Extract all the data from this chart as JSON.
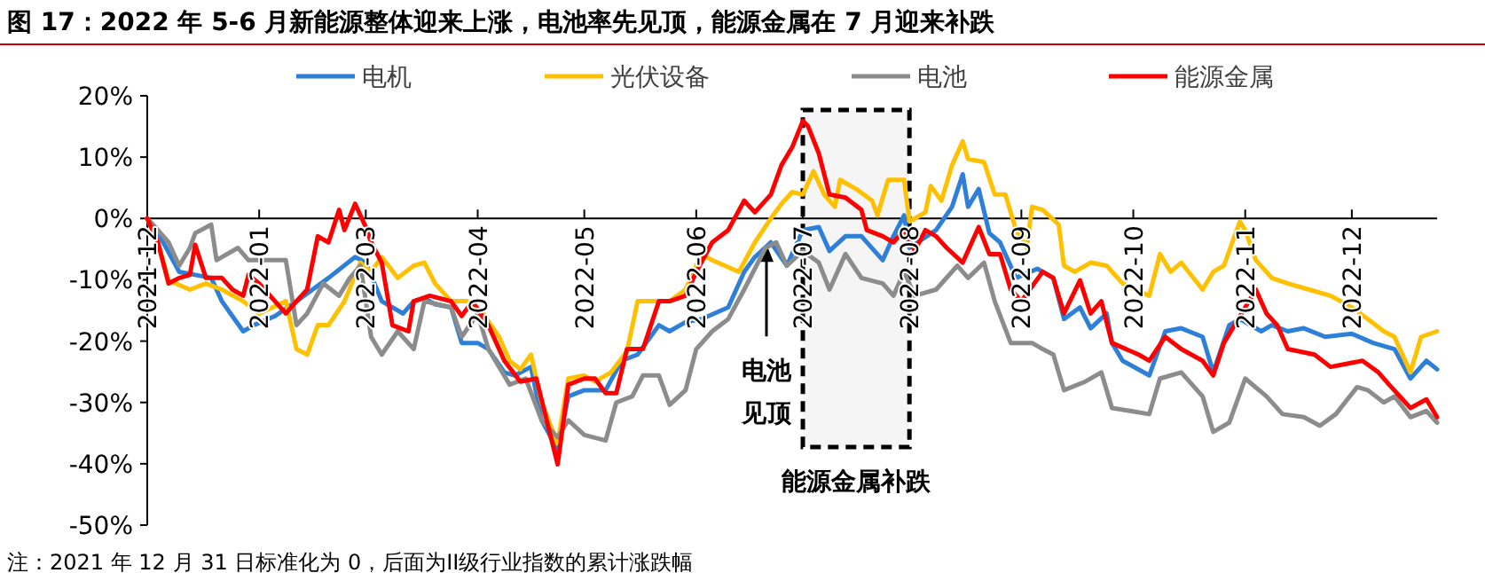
{
  "chart_data": {
    "type": "line",
    "title": "图 17：2022 年 5-6 月新能源整体迎来上涨，电池率先见顶，能源金属在 7 月迎来补跌",
    "categories": [
      "2021-12",
      null,
      null,
      null,
      null,
      null,
      null,
      null,
      null,
      null,
      null,
      null,
      null,
      null,
      null,
      null,
      null,
      null,
      null,
      null,
      null,
      "2022-01",
      null,
      null,
      null,
      null,
      null,
      null,
      null,
      null,
      null,
      null,
      null,
      null,
      null,
      null,
      null,
      null,
      null,
      null,
      null,
      "2022-03",
      null,
      null,
      null,
      null,
      null,
      null,
      null,
      null,
      null,
      null,
      null,
      null,
      null,
      null,
      null,
      null,
      null,
      null,
      null,
      null,
      "2022-04",
      null,
      null,
      null,
      null,
      null,
      null,
      null,
      null,
      null,
      null,
      null,
      null,
      null,
      null,
      null,
      null,
      null,
      null,
      null,
      "2022-05",
      null,
      null,
      null,
      null,
      null,
      null,
      null,
      null,
      null,
      null,
      null,
      null,
      null,
      null,
      null,
      null,
      null,
      null,
      null,
      null,
      "2022-06",
      null,
      null,
      null,
      null,
      null,
      null,
      null,
      null,
      null,
      null,
      null,
      null,
      null,
      null,
      null,
      null,
      null,
      null,
      null,
      "2022-07",
      null,
      null,
      null,
      null,
      null,
      null,
      null,
      null,
      null,
      null,
      null,
      null,
      null,
      null,
      null,
      null,
      null,
      null,
      null,
      "2022-08",
      null,
      null,
      null,
      null,
      null,
      null,
      null,
      null,
      null,
      null,
      null,
      null,
      null,
      null,
      null,
      null,
      null,
      null,
      null,
      null,
      "2022-09",
      null,
      null,
      null,
      null,
      null,
      null,
      null,
      null,
      null,
      null,
      null,
      null,
      null,
      null,
      null,
      null,
      null,
      null,
      null,
      null,
      "2022-10",
      null,
      null,
      null,
      null,
      null,
      null,
      null,
      null,
      null,
      null,
      null,
      null,
      null,
      null,
      null,
      null,
      null,
      null,
      null,
      null,
      "2022-11",
      null,
      null,
      null,
      null,
      null,
      null,
      null,
      null,
      null,
      null,
      null,
      null,
      null,
      null,
      null,
      null,
      null,
      null,
      null,
      "2022-12",
      null,
      null,
      null,
      null,
      null,
      null,
      null,
      null,
      null,
      null,
      null,
      null,
      null,
      null,
      null,
      null
    ],
    "ylim": [
      -50,
      20
    ],
    "yticks": [
      {
        "value": -50,
        "label": "-50%"
      },
      {
        "value": -40,
        "label": "-40%"
      },
      {
        "value": -30,
        "label": "-30%"
      },
      {
        "value": -20,
        "label": "-20%"
      },
      {
        "value": -10,
        "label": "-10%"
      },
      {
        "value": 0,
        "label": "0%"
      },
      {
        "value": 10,
        "label": "10%"
      },
      {
        "value": 20,
        "label": "20%"
      }
    ],
    "legend": "top",
    "line_style": "solid",
    "series": [
      {
        "name": "电机",
        "color": "#2e7fd8",
        "values": [
          0,
          null,
          null,
          -3.9,
          null,
          null,
          -8.7,
          null,
          null,
          -9.2,
          null,
          null,
          -9.7,
          null,
          -13.5,
          null,
          null,
          null,
          -18.4,
          null,
          -17.4,
          null,
          null,
          null,
          -15.9,
          null,
          null,
          null,
          -13.5,
          null,
          null,
          -11.6,
          null,
          null,
          -9.7,
          null,
          null,
          null,
          null,
          -6.3,
          null,
          -7.2,
          null,
          null,
          -13.5,
          null,
          null,
          null,
          -15.5,
          null,
          -13.5,
          null,
          -13.0,
          null,
          -14.0,
          null,
          null,
          -14.5,
          null,
          -20.3,
          null,
          null,
          -20.3,
          null,
          -21.3,
          null,
          null,
          -25.1,
          null,
          -25.6,
          null,
          null,
          -24.2,
          null,
          -32.9,
          null,
          null,
          -37.7,
          null,
          -29.0,
          null,
          null,
          -28.0,
          null,
          null,
          null,
          -28.0,
          null,
          null,
          -23.2,
          null,
          null,
          -22.2,
          null,
          null,
          null,
          -17.4,
          null,
          -18.4,
          null,
          null,
          -16.9,
          null,
          null,
          -16.4,
          null,
          null,
          null,
          null,
          -14.5,
          null,
          null,
          -8.7,
          null,
          -6.3,
          null,
          null,
          -3.9,
          null,
          null,
          -7.7,
          null,
          null,
          -1.9,
          null,
          null,
          -1.4,
          null,
          -5.3,
          null,
          null,
          -2.9,
          null,
          null,
          -2.9,
          null,
          null,
          null,
          -6.8,
          null,
          -2.9,
          null,
          0.5,
          -4.8,
          null,
          null,
          null,
          null,
          -1.9,
          null,
          null,
          1.9,
          null,
          7.2,
          1.9,
          null,
          4.8,
          null,
          -2.4,
          null,
          -3.9,
          null,
          null,
          -9.7,
          null,
          null,
          null,
          -8.2,
          null,
          null,
          -9.7,
          null,
          -16.4,
          null,
          null,
          -14.5,
          null,
          -17.9,
          null,
          null,
          -15.5,
          -20.3,
          null,
          -23.2,
          null,
          null,
          null,
          null,
          -25.6,
          null,
          null,
          -18.4,
          null,
          null,
          -17.9,
          null,
          null,
          null,
          -19.3,
          null,
          -25.1,
          null,
          null,
          -17.4,
          null,
          -16.4,
          null,
          null,
          null,
          -18.4,
          null,
          -17.4,
          null,
          null,
          -18.4,
          null,
          null,
          -17.9,
          null,
          null,
          null,
          -19.3,
          null,
          null,
          null,
          null,
          -18.8,
          null,
          null,
          null,
          -20.3,
          null,
          null,
          null,
          -21.3,
          null,
          null,
          -26.1,
          null,
          null,
          -23.2,
          null,
          -24.6
        ]
      },
      {
        "name": "光伏设备",
        "color": "#ffc000",
        "values": [
          0,
          null,
          -3.9,
          null,
          -10.1,
          null,
          null,
          null,
          -11.6,
          null,
          null,
          -10.6,
          null,
          null,
          -11.6,
          null,
          null,
          null,
          -13.5,
          null,
          null,
          -15.5,
          null,
          null,
          null,
          null,
          -13.5,
          null,
          -21.3,
          null,
          -22.2,
          null,
          -17.4,
          null,
          -17.4,
          null,
          null,
          -13.5,
          null,
          null,
          -7.2,
          null,
          -8.7,
          null,
          -6.3,
          null,
          null,
          -9.7,
          null,
          null,
          -7.7,
          null,
          -7.2,
          null,
          -10.6,
          null,
          null,
          -13.5,
          null,
          null,
          -13.5,
          null,
          null,
          -15.5,
          null,
          null,
          -19.3,
          null,
          -23.2,
          null,
          -24.6,
          null,
          -22.2,
          null,
          -30.0,
          null,
          null,
          -36.7,
          null,
          -26.1,
          null,
          null,
          -25.6,
          null,
          -26.6,
          null,
          null,
          -25.1,
          null,
          null,
          -21.7,
          null,
          -13.5,
          null,
          -13.5,
          null,
          null,
          null,
          -13.5,
          null,
          null,
          -11.6,
          null,
          null,
          -5.8,
          null,
          -6.8,
          null,
          null,
          null,
          null,
          -8.7,
          null,
          null,
          -3.9,
          null,
          null,
          0,
          null,
          2.4,
          null,
          4.3,
          null,
          3.9,
          null,
          7.7,
          null,
          3.9,
          null,
          1.9,
          6.3,
          null,
          null,
          4.8,
          null,
          null,
          2.9,
          0.5,
          null,
          6.3,
          null,
          null,
          6.3,
          -0.5,
          null,
          null,
          1.0,
          5.3,
          null,
          2.9,
          null,
          8.7,
          null,
          12.6,
          9.7,
          null,
          null,
          9.2,
          null,
          3.9,
          null,
          3.9,
          null,
          -1.9,
          null,
          -4.8,
          1.9,
          null,
          1.4,
          null,
          null,
          -1.0,
          -7.7,
          null,
          -8.7,
          null,
          null,
          -7.2,
          null,
          null,
          -7.7,
          null,
          null,
          -10.6,
          null,
          null,
          null,
          null,
          -12.6,
          null,
          -5.8,
          null,
          -8.7,
          null,
          -7.2,
          null,
          null,
          null,
          -11.6,
          null,
          -8.7,
          null,
          -7.7,
          null,
          null,
          -0.5,
          -1.9,
          null,
          -6.8,
          null,
          null,
          -9.7,
          null,
          null,
          -10.6,
          null,
          null,
          null,
          -11.6,
          null,
          null,
          null,
          -12.6,
          null,
          null,
          null,
          -14.5,
          null,
          null,
          -16.4,
          null,
          null,
          -18.4,
          null,
          -19.3,
          null,
          null,
          -25.1,
          null,
          -19.3,
          null,
          null,
          -18.4
        ]
      },
      {
        "name": "电池",
        "color": "#8c8c8c",
        "values": [
          0,
          null,
          -1.9,
          null,
          -3.9,
          null,
          -7.7,
          null,
          -4.8,
          -2.4,
          null,
          null,
          -1.0,
          -6.8,
          null,
          null,
          null,
          -4.8,
          null,
          -6.8,
          null,
          null,
          -6.8,
          null,
          null,
          null,
          -6.8,
          null,
          -17.4,
          null,
          -15.5,
          null,
          null,
          -10.6,
          null,
          null,
          -12.6,
          null,
          -9.7,
          null,
          -7.7,
          null,
          -19.3,
          null,
          -22.2,
          null,
          null,
          -18.4,
          null,
          null,
          -21.3,
          null,
          -13.5,
          null,
          null,
          null,
          null,
          -14.5,
          null,
          -19.3,
          null,
          null,
          -15.5,
          null,
          -21.3,
          null,
          null,
          null,
          -27.1,
          null,
          null,
          -26.1,
          null,
          null,
          -32.9,
          null,
          null,
          -35.7,
          null,
          -32.9,
          null,
          null,
          -35.3,
          null,
          null,
          null,
          -36.2,
          null,
          -30.0,
          null,
          null,
          -29.0,
          null,
          -25.6,
          null,
          null,
          -25.6,
          null,
          -30.4,
          null,
          null,
          -28.0,
          null,
          -21.3,
          null,
          null,
          -18.4,
          null,
          null,
          -16.4,
          null,
          null,
          -11.6,
          null,
          null,
          null,
          -4.8,
          null,
          -3.9,
          null,
          -7.7,
          null,
          null,
          -5.3,
          null,
          null,
          -7.2,
          null,
          -11.6,
          null,
          null,
          -5.8,
          null,
          null,
          -9.7,
          null,
          null,
          null,
          -10.6,
          null,
          -12.6,
          null,
          -8.7,
          null,
          -12.6,
          null,
          null,
          null,
          -11.6,
          null,
          null,
          null,
          -7.7,
          null,
          -9.7,
          null,
          null,
          -7.2,
          null,
          -13.5,
          null,
          null,
          -20.3,
          null,
          null,
          null,
          -20.3,
          null,
          -21.3,
          null,
          -22.2,
          null,
          -28.0,
          null,
          null,
          null,
          -26.6,
          null,
          null,
          -25.1,
          null,
          -30.9,
          null,
          null,
          null,
          null,
          null,
          null,
          -31.9,
          null,
          -26.1,
          null,
          null,
          null,
          -25.1,
          null,
          null,
          null,
          -29.0,
          null,
          -34.8,
          null,
          null,
          -33.3,
          null,
          null,
          -26.1,
          null,
          null,
          null,
          -29.0,
          null,
          null,
          -31.9,
          null,
          null,
          null,
          -32.4,
          null,
          null,
          -33.8,
          null,
          null,
          -31.9,
          null,
          null,
          null,
          -27.5,
          null,
          -28.0,
          null,
          null,
          -30.0,
          null,
          -29.0,
          null,
          null,
          -32.4,
          null,
          null,
          -31.4,
          null,
          -33.3
        ]
      },
      {
        "name": "能源金属",
        "color": "#ff0000",
        "values": [
          0,
          null,
          -3.9,
          null,
          -10.6,
          null,
          -9.7,
          null,
          -9.2,
          -4.3,
          null,
          -9.7,
          null,
          null,
          -9.7,
          null,
          -11.6,
          null,
          -12.6,
          -9.2,
          null,
          -10.6,
          null,
          null,
          null,
          null,
          -15.5,
          null,
          -13.5,
          null,
          -11.6,
          null,
          -2.9,
          null,
          -3.9,
          null,
          1.4,
          -1.9,
          null,
          2.4,
          null,
          -1.4,
          -3.9,
          null,
          -7.2,
          null,
          -17.4,
          null,
          null,
          -18.4,
          -13.5,
          null,
          null,
          -12.6,
          null,
          null,
          null,
          -13.5,
          null,
          -15.9,
          null,
          -13.5,
          null,
          null,
          -17.4,
          null,
          null,
          -23.2,
          null,
          null,
          -26.6,
          null,
          null,
          -26.1,
          null,
          null,
          null,
          -40.1,
          null,
          -27.1,
          null,
          null,
          -26.1,
          null,
          -26.1,
          null,
          -28.5,
          null,
          -28.5,
          null,
          -21.3,
          null,
          null,
          -21.3,
          null,
          null,
          -13.5,
          null,
          -13.5,
          null,
          null,
          -12.6,
          null,
          -8.7,
          null,
          null,
          -3.9,
          null,
          null,
          -1.9,
          null,
          null,
          2.9,
          null,
          1.0,
          null,
          null,
          3.9,
          null,
          8.7,
          null,
          11.6,
          null,
          15.9,
          15.0,
          null,
          10.6,
          null,
          3.9,
          null,
          null,
          3.4,
          null,
          null,
          1.4,
          -1.9,
          null,
          null,
          -2.9,
          null,
          -3.9,
          null,
          -1.9,
          null,
          -5.3,
          null,
          -1.9,
          null,
          -2.9,
          null,
          -4.8,
          null,
          null,
          -7.2,
          null,
          null,
          -1.4,
          null,
          -5.8,
          null,
          -5.8,
          null,
          -11.6,
          null,
          -13.5,
          null,
          null,
          null,
          -8.7,
          null,
          -9.7,
          null,
          -15.5,
          null,
          null,
          -10.1,
          null,
          -15.5,
          null,
          -13.5,
          null,
          -20.3,
          null,
          null,
          null,
          null,
          -22.2,
          null,
          -23.2,
          null,
          null,
          -19.3,
          null,
          null,
          -21.3,
          null,
          null,
          null,
          -23.2,
          null,
          -25.6,
          null,
          -20.3,
          null,
          -17.4,
          null,
          null,
          null,
          -11.6,
          null,
          -15.5,
          null,
          -17.4,
          null,
          -21.3,
          null,
          null,
          null,
          null,
          -22.2,
          null,
          null,
          -24.2,
          null,
          null,
          null,
          null,
          null,
          -23.2,
          null,
          null,
          -25.1,
          null,
          -27.1,
          null,
          null,
          null,
          -30.9,
          null,
          null,
          -29.5,
          null,
          -32.4
        ]
      }
    ],
    "bands": [
      {
        "axis": "x",
        "from": "2022-07",
        "to": "2022-08",
        "label": "能源金属补跌",
        "color": "#000000"
      }
    ],
    "annotations": [
      {
        "text": "电池见顶",
        "y": -3.9
      },
      "注：2021 年 12 月 31 日标准化为 0，后面为II级行业指数的累计涨跌幅"
    ]
  }
}
